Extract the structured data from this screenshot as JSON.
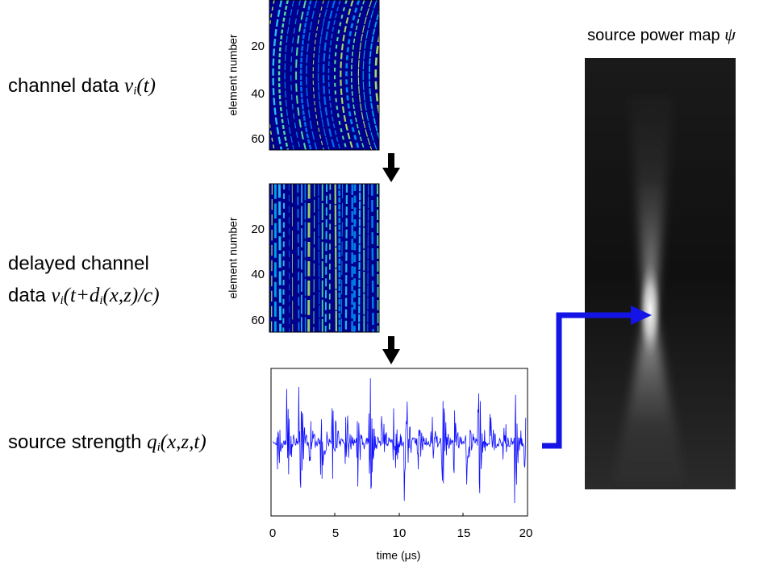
{
  "labels": [
    {
      "text": "channel data ",
      "math": [
        "v",
        "i",
        "(t)"
      ]
    },
    {
      "line1": "delayed channel",
      "text": "data ",
      "math": [
        "v",
        "i",
        "(t+d",
        "i",
        "(x,z)/c)"
      ]
    },
    {
      "text": "source strength ",
      "math": [
        "q",
        "i",
        "(x,z,t)"
      ]
    }
  ],
  "plots": [
    {
      "ylabel": "element number",
      "yticks": [
        "20",
        "40",
        "60"
      ]
    },
    {
      "ylabel": "element number",
      "yticks": [
        "20",
        "40",
        "60"
      ]
    },
    {
      "xticks": [
        "0",
        "5",
        "10",
        "15",
        "20"
      ],
      "xlabel": "time (μs)"
    }
  ],
  "power_map": {
    "title": "source power map ",
    "symbol": "ψ"
  }
}
